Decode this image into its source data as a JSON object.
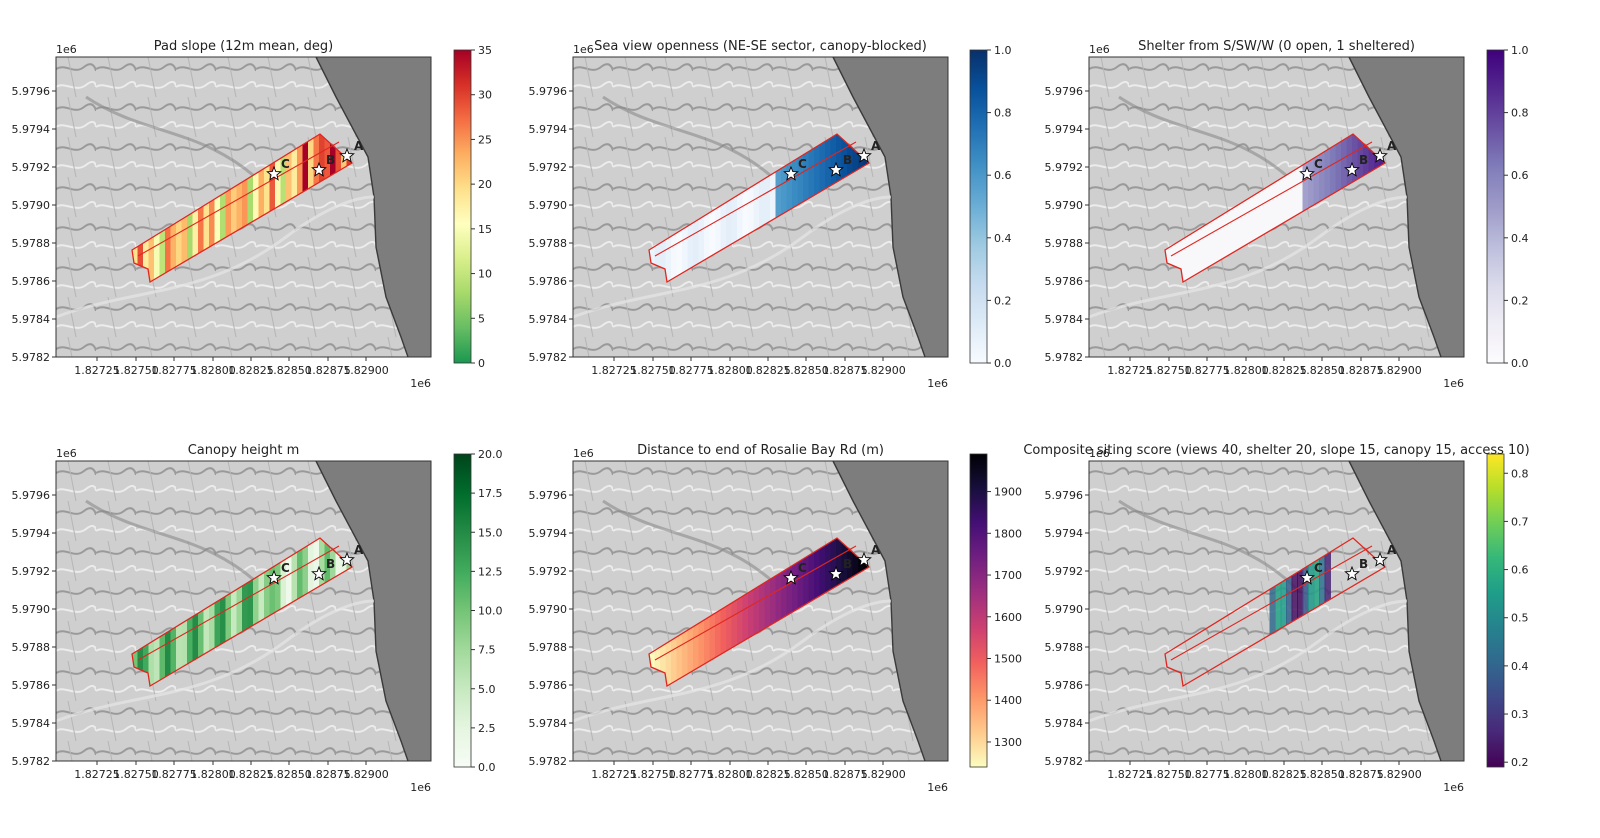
{
  "figure": {
    "background": "#ffffff"
  },
  "axes_common": {
    "x_ticks": [
      "1.82725",
      "1.82750",
      "1.82775",
      "1.82800",
      "1.82825",
      "1.82850",
      "1.82875",
      "1.82900"
    ],
    "x_exponent": "1e6",
    "y_ticks": [
      "5.9782",
      "5.9784",
      "5.9786",
      "5.9788",
      "5.9790",
      "5.9792",
      "5.9794",
      "5.9796"
    ],
    "y_exponent": "1e6",
    "xlim": [
      1827000,
      1829030
    ],
    "ylim": [
      5978200,
      5979780
    ]
  },
  "chart_data": [
    {
      "type": "heatmap",
      "title": "Pad slope (12m mean, deg)",
      "colormap": "RdYlGn_r",
      "colors": [
        "#1a9850",
        "#66bd63",
        "#a6d96a",
        "#d9ef8b",
        "#ffffbf",
        "#fee08b",
        "#fdae61",
        "#f46d43",
        "#d73027",
        "#a50026"
      ],
      "cbar_range": [
        0,
        35
      ],
      "cbar_ticks": [
        "0",
        "5",
        "10",
        "15",
        "20",
        "25",
        "30",
        "35"
      ],
      "sites": [
        {
          "label": "A"
        },
        {
          "label": "B"
        },
        {
          "label": "C"
        }
      ]
    },
    {
      "type": "heatmap",
      "title": "Sea view openness (NE-SE sector, canopy-blocked)",
      "colormap": "Blues",
      "colors": [
        "#f7fbff",
        "#deebf7",
        "#c6dbef",
        "#9ecae1",
        "#6baed6",
        "#4292c6",
        "#2171b5",
        "#08519c",
        "#08306b"
      ],
      "cbar_range": [
        0.0,
        1.0
      ],
      "cbar_ticks": [
        "0.0",
        "0.2",
        "0.4",
        "0.6",
        "0.8",
        "1.0"
      ],
      "sites": [
        {
          "label": "A"
        },
        {
          "label": "B"
        },
        {
          "label": "C"
        }
      ]
    },
    {
      "type": "heatmap",
      "title": "Shelter from S/SW/W (0 open, 1 sheltered)",
      "colormap": "Purples",
      "colors": [
        "#fcfbfd",
        "#efedf5",
        "#dadaeb",
        "#bcbddc",
        "#9e9ac8",
        "#807dba",
        "#6a51a3",
        "#54278f",
        "#3f007d"
      ],
      "cbar_range": [
        0.0,
        1.0
      ],
      "cbar_ticks": [
        "0.0",
        "0.2",
        "0.4",
        "0.6",
        "0.8",
        "1.0"
      ],
      "sites": [
        {
          "label": "A"
        },
        {
          "label": "B"
        },
        {
          "label": "C"
        }
      ]
    },
    {
      "type": "heatmap",
      "title": "Canopy height m",
      "colormap": "Greens",
      "colors": [
        "#f7fcf5",
        "#e5f5e0",
        "#c7e9c0",
        "#a1d99b",
        "#74c476",
        "#41ab5d",
        "#238b45",
        "#006d2c",
        "#00441b"
      ],
      "cbar_range": [
        0.0,
        20.0
      ],
      "cbar_ticks": [
        "0.0",
        "2.5",
        "5.0",
        "7.5",
        "10.0",
        "12.5",
        "15.0",
        "17.5",
        "20.0"
      ],
      "sites": [
        {
          "label": "A"
        },
        {
          "label": "B"
        },
        {
          "label": "C"
        }
      ]
    },
    {
      "type": "heatmap",
      "title": "Distance to end of Rosalie Bay Rd (m)",
      "colormap": "magma_r",
      "colors": [
        "#fcfdbf",
        "#feca8d",
        "#fd9668",
        "#f1605d",
        "#cd4071",
        "#9e2f7f",
        "#721f81",
        "#440f76",
        "#180f3d",
        "#000004"
      ],
      "cbar_range": [
        1240,
        1990
      ],
      "cbar_ticks": [
        "1300",
        "1400",
        "1500",
        "1600",
        "1700",
        "1800",
        "1900"
      ],
      "sites": [
        {
          "label": "A"
        },
        {
          "label": "B"
        },
        {
          "label": "C"
        }
      ]
    },
    {
      "type": "heatmap",
      "title": "Composite siting score (views 40, shelter 20, slope 15, canopy 15, access 10)",
      "colormap": "viridis",
      "colors": [
        "#440154",
        "#482878",
        "#3e4989",
        "#31688e",
        "#26828e",
        "#1f9e89",
        "#35b779",
        "#6ece58",
        "#b5de2b",
        "#fde725"
      ],
      "cbar_range": [
        0.19,
        0.84
      ],
      "cbar_ticks": [
        "0.2",
        "0.3",
        "0.4",
        "0.5",
        "0.6",
        "0.7",
        "0.8"
      ],
      "sites": [
        {
          "label": "A"
        },
        {
          "label": "B"
        },
        {
          "label": "C"
        }
      ]
    }
  ]
}
